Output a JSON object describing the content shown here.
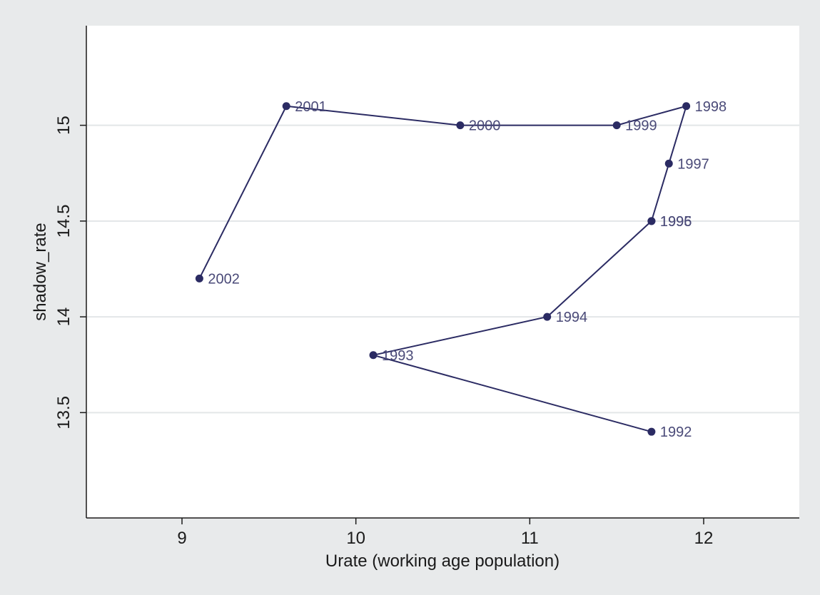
{
  "chart_data": {
    "type": "scatter",
    "connected": true,
    "title": "",
    "xlabel": "Urate (working age population)",
    "ylabel": "shadow_rate",
    "xlim": [
      8.45,
      12.55
    ],
    "ylim": [
      12.95,
      15.52
    ],
    "xticks": [
      9,
      10,
      11,
      12
    ],
    "yticks": [
      13.5,
      14,
      14.5,
      15
    ],
    "xtick_labels": [
      "9",
      "10",
      "11",
      "12"
    ],
    "ytick_labels": [
      "13.5",
      "14",
      "14.5",
      "15"
    ],
    "grid": "horizontal",
    "legend": "none",
    "series": [
      {
        "points": [
          {
            "label": "1992",
            "x": 11.7,
            "y": 13.4
          },
          {
            "label": "1993",
            "x": 10.1,
            "y": 13.8
          },
          {
            "label": "1994",
            "x": 11.1,
            "y": 14.0
          },
          {
            "label": "1995",
            "x": 11.7,
            "y": 14.5
          },
          {
            "label": "1996",
            "x": 11.7,
            "y": 14.5
          },
          {
            "label": "1997",
            "x": 11.8,
            "y": 14.8
          },
          {
            "label": "1998",
            "x": 11.9,
            "y": 15.1
          },
          {
            "label": "1999",
            "x": 11.5,
            "y": 15.0
          },
          {
            "label": "2000",
            "x": 10.6,
            "y": 15.0
          },
          {
            "label": "2001",
            "x": 9.6,
            "y": 15.1
          },
          {
            "label": "2002",
            "x": 9.1,
            "y": 14.2
          }
        ]
      }
    ],
    "colors": {
      "outer_background": "#e8eaeb",
      "plot_background": "#ffffff",
      "series": "#2b2b63",
      "label": "#4a4a78",
      "grid": "#e3e6e8",
      "axis": "#1a1a1a"
    }
  }
}
